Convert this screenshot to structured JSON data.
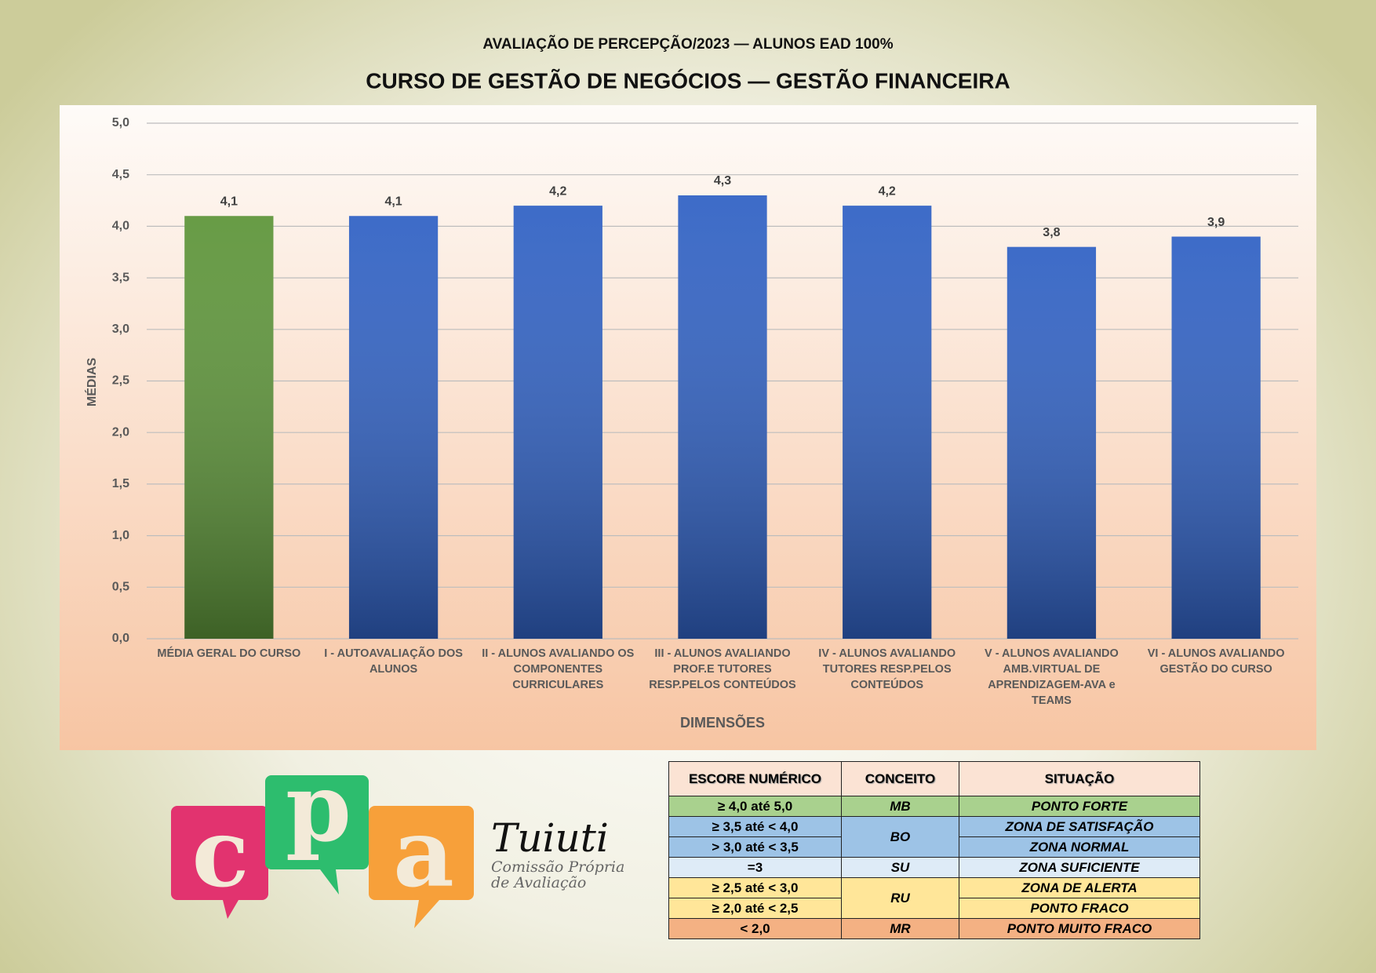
{
  "chart_data": {
    "type": "bar",
    "subtitle": "AVALIAÇÃO DE PERCEPÇÃO/2023 — ALUNOS EAD 100%",
    "title": "CURSO DE GESTÃO DE NEGÓCIOS — GESTÃO FINANCEIRA",
    "ylabel": "MÉDIAS",
    "xlabel": "DIMENSÕES",
    "categories": [
      "MÉDIA GERAL DO CURSO",
      "I - AUTOAVALIAÇÃO DOS ALUNOS",
      "II - ALUNOS AVALIANDO OS COMPONENTES CURRICULARES",
      "III - ALUNOS AVALIANDO PROF.E TUTORES RESP.PELOS CONTEÚDOS",
      "IV - ALUNOS AVALIANDO TUTORES RESP.PELOS CONTEÚDOS",
      "V - ALUNOS AVALIANDO AMB.VIRTUAL DE APRENDIZAGEM-AVA e TEAMS",
      "VI - ALUNOS AVALIANDO GESTÃO DO CURSO"
    ],
    "values": [
      4.1,
      4.1,
      4.2,
      4.3,
      4.2,
      3.8,
      3.9
    ],
    "value_labels": [
      "4,1",
      "4,1",
      "4,2",
      "4,3",
      "4,2",
      "3,8",
      "3,9"
    ],
    "colors": [
      "#5e953a",
      "#3162c4",
      "#3162c4",
      "#3162c4",
      "#3162c4",
      "#3162c4",
      "#3162c4"
    ],
    "ylim": [
      0,
      5
    ],
    "yticks": [
      {
        "value": 0,
        "label": "0,0"
      },
      {
        "value": 0.5,
        "label": "0,5"
      },
      {
        "value": 1,
        "label": "1,0"
      },
      {
        "value": 1.5,
        "label": "1,5"
      },
      {
        "value": 2,
        "label": "2,0"
      },
      {
        "value": 2.5,
        "label": "2,5"
      },
      {
        "value": 3,
        "label": "3,0"
      },
      {
        "value": 3.5,
        "label": "3,5"
      },
      {
        "value": 4,
        "label": "4,0"
      },
      {
        "value": 4.5,
        "label": "4,5"
      },
      {
        "value": 5,
        "label": "5,0"
      }
    ],
    "grid": true
  },
  "legend_table": {
    "columns": [
      "ESCORE NUMÉRICO",
      "CONCEITO",
      "SITUAÇÃO"
    ],
    "groups": [
      {
        "concept": "MB",
        "color": "#a9d18e",
        "rows": [
          {
            "score": "≥ 4,0 até 5,0",
            "situation": "PONTO FORTE"
          }
        ]
      },
      {
        "concept": "BO",
        "color": "#9dc3e6",
        "rows": [
          {
            "score": "≥ 3,5 até < 4,0",
            "situation": "ZONA DE SATISFAÇÃO"
          },
          {
            "score": "> 3,0 até < 3,5",
            "situation": "ZONA NORMAL"
          }
        ]
      },
      {
        "concept": "SU",
        "color": "#deebf7",
        "rows": [
          {
            "score": "=3",
            "situation": "ZONA SUFICIENTE"
          }
        ]
      },
      {
        "concept": "RU",
        "color": "#ffe699",
        "rows": [
          {
            "score": "≥ 2,5 até < 3,0",
            "situation": "ZONA DE ALERTA"
          },
          {
            "score": "≥ 2,0 até < 2,5",
            "situation": "PONTO FRACO"
          }
        ]
      },
      {
        "concept": "MR",
        "color": "#f4b183",
        "rows": [
          {
            "score": "< 2,0",
            "situation": "PONTO MUITO FRACO"
          }
        ]
      }
    ]
  },
  "logo": {
    "letters": [
      "c",
      "p",
      "a"
    ],
    "name": "Tuiuti",
    "line1": "Comissão Própria",
    "line2": "de Avaliação"
  }
}
